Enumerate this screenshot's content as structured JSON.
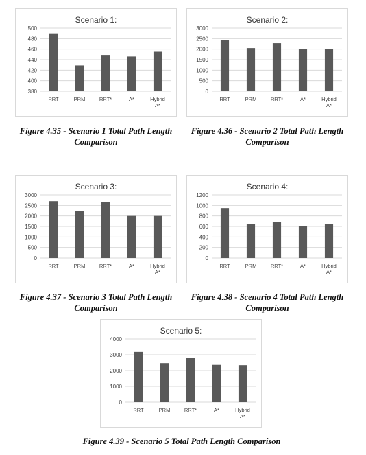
{
  "chart_data": [
    {
      "type": "bar",
      "title": "Scenario 1:",
      "categories": [
        "RRT",
        "PRM",
        "RRT*",
        "A*",
        "Hybrid A*"
      ],
      "values": [
        490,
        429,
        449,
        446,
        455
      ],
      "ylim": [
        380,
        500
      ],
      "yticks": [
        380,
        400,
        420,
        440,
        460,
        480,
        500
      ],
      "grid": true,
      "bar_color": "#595959"
    },
    {
      "type": "bar",
      "title": "Scenario 2:",
      "categories": [
        "RRT",
        "PRM",
        "RRT*",
        "A*",
        "Hybrid A*"
      ],
      "values": [
        2420,
        2050,
        2280,
        2020,
        2020
      ],
      "ylim": [
        0,
        3000
      ],
      "yticks": [
        0,
        500,
        1000,
        1500,
        2000,
        2500,
        3000
      ],
      "grid": true,
      "bar_color": "#595959"
    },
    {
      "type": "bar",
      "title": "Scenario 3:",
      "categories": [
        "RRT",
        "PRM",
        "RRT*",
        "A*",
        "Hybrid A*"
      ],
      "values": [
        2700,
        2230,
        2650,
        2000,
        2000
      ],
      "ylim": [
        0,
        3000
      ],
      "yticks": [
        0,
        500,
        1000,
        1500,
        2000,
        2500,
        3000
      ],
      "grid": true,
      "bar_color": "#595959"
    },
    {
      "type": "bar",
      "title": "Scenario 4:",
      "categories": [
        "RRT",
        "PRM",
        "RRT*",
        "A*",
        "Hybrid A*"
      ],
      "values": [
        950,
        640,
        680,
        610,
        650
      ],
      "ylim": [
        0,
        1200
      ],
      "yticks": [
        0,
        200,
        400,
        600,
        800,
        1000,
        1200
      ],
      "grid": true,
      "bar_color": "#595959"
    },
    {
      "type": "bar",
      "title": "Scenario 5:",
      "categories": [
        "RRT",
        "PRM",
        "RRT*",
        "A*",
        "Hybrid A*"
      ],
      "values": [
        3180,
        2470,
        2820,
        2360,
        2340
      ],
      "ylim": [
        0,
        4000
      ],
      "yticks": [
        0,
        1000,
        2000,
        3000,
        4000
      ],
      "grid": true,
      "bar_color": "#595959"
    }
  ],
  "captions": [
    "Figure 4.35 - Scenario 1 Total Path Length Comparison",
    "Figure 4.36 - Scenario 2 Total Path Length Comparison",
    "Figure 4.37 - Scenario 3 Total Path Length Comparison",
    "Figure 4.38 - Scenario 4 Total Path Length Comparison",
    "Figure 4.39 - Scenario 5 Total Path Length Comparison"
  ]
}
